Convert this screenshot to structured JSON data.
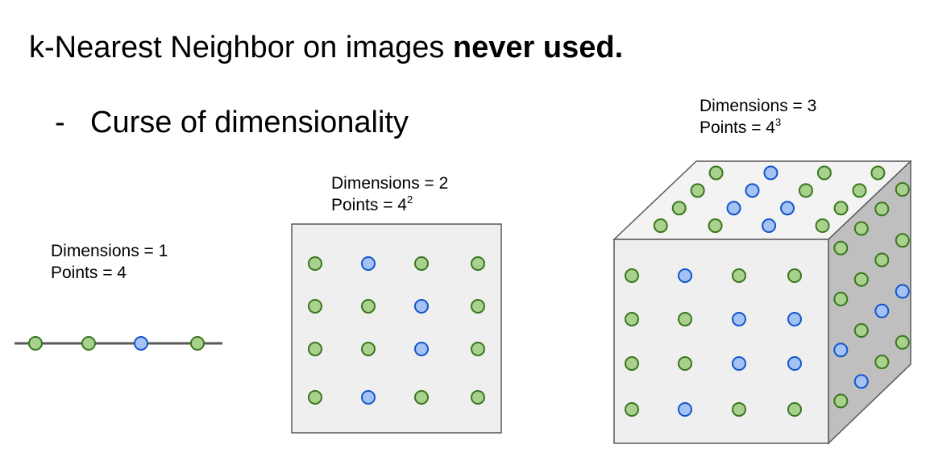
{
  "title": {
    "prefix": "k-Nearest Neighbor on images ",
    "emphasis": "never used."
  },
  "bullet": {
    "marker": "-",
    "text": "Curse of dimensionality"
  },
  "panels": [
    {
      "id": "1d",
      "dims_text": "Dimensions = 1",
      "points_text": "Points = 4",
      "points_exp": ""
    },
    {
      "id": "2d",
      "dims_text": "Dimensions = 2",
      "points_text": "Points = 4",
      "points_exp": "2"
    },
    {
      "id": "3d",
      "dims_text": "Dimensions = 3",
      "points_text": "Points = 4",
      "points_exp": "3"
    }
  ],
  "colors": {
    "green_fill": "#a9d18e",
    "green_stroke": "#38761d",
    "blue_fill": "#a4c2f4",
    "blue_stroke": "#1155cc",
    "line": "#595959",
    "square_fill": "#efefef",
    "square_stroke": "#595959",
    "cube_front": "#efefef",
    "cube_top": "#f3f3f3",
    "cube_side": "#bfbfbf",
    "cube_stroke": "#595959"
  },
  "point_classes": {
    "line_1d": [
      "g",
      "g",
      "b",
      "g"
    ],
    "grid_2d": [
      [
        "g",
        "b",
        "g",
        "g"
      ],
      [
        "g",
        "g",
        "b",
        "g"
      ],
      [
        "g",
        "g",
        "b",
        "g"
      ],
      [
        "g",
        "b",
        "g",
        "g"
      ]
    ],
    "cube_front": [
      [
        "g",
        "b",
        "g",
        "g"
      ],
      [
        "g",
        "g",
        "b",
        "b"
      ],
      [
        "g",
        "g",
        "b",
        "b"
      ],
      [
        "g",
        "b",
        "g",
        "g"
      ]
    ],
    "cube_top": [
      [
        "g",
        "g",
        "b",
        "g"
      ],
      [
        "g",
        "b",
        "b",
        "g"
      ],
      [
        "g",
        "b",
        "g",
        "g"
      ],
      [
        "g",
        "b",
        "g",
        "g"
      ]
    ],
    "cube_side": [
      [
        "g",
        "g",
        "g",
        "g"
      ],
      [
        "g",
        "g",
        "g",
        "g"
      ],
      [
        "b",
        "g",
        "b",
        "b"
      ],
      [
        "g",
        "b",
        "g",
        "g"
      ]
    ]
  }
}
